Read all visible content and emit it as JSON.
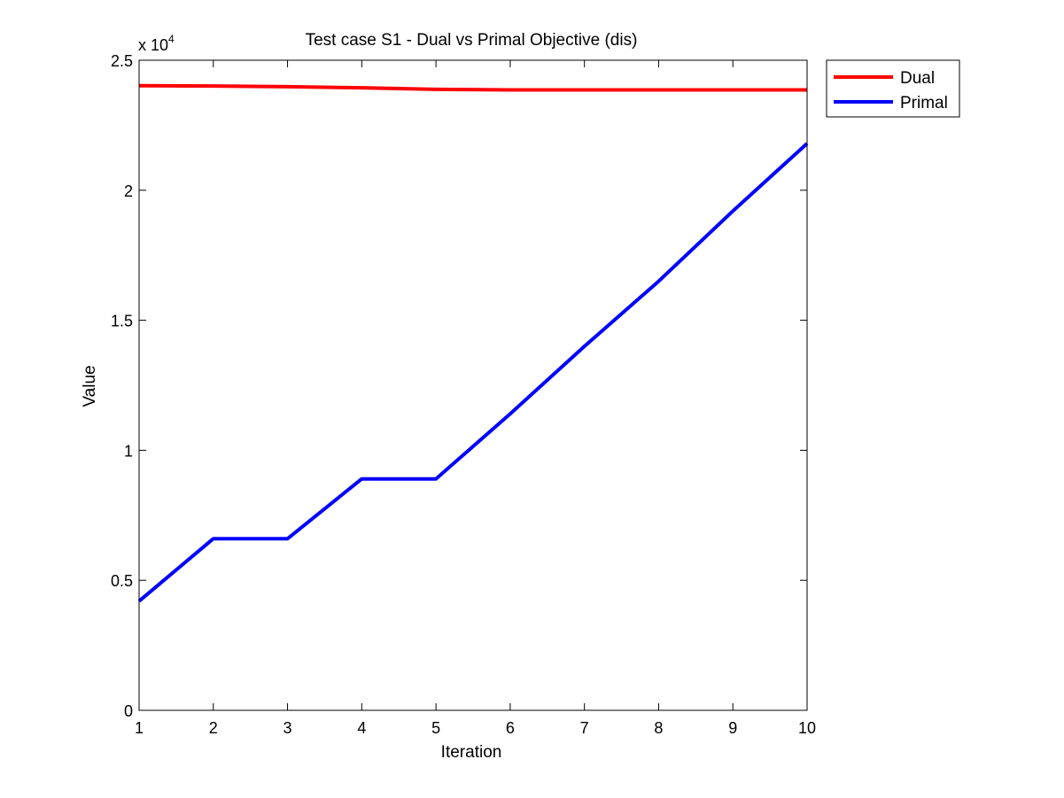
{
  "chart_data": {
    "type": "line",
    "title": "Test case S1 - Dual vs Primal Objective (dis)",
    "xlabel": "Iteration",
    "ylabel": "Value",
    "y_scale_multiplier": {
      "base": "x 10",
      "exponent": "4"
    },
    "xlim": [
      1,
      10
    ],
    "ylim": [
      0,
      25000
    ],
    "x_ticks": [
      1,
      2,
      3,
      4,
      5,
      6,
      7,
      8,
      9,
      10
    ],
    "x_tick_labels": [
      "1",
      "2",
      "3",
      "4",
      "5",
      "6",
      "7",
      "8",
      "9",
      "10"
    ],
    "y_ticks": [
      0,
      5000,
      10000,
      15000,
      20000,
      25000
    ],
    "y_tick_labels": [
      "0",
      "0.5",
      "1",
      "1.5",
      "2",
      "2.5"
    ],
    "grid": false,
    "legend_position": "outside top-right",
    "series": [
      {
        "name": "Dual",
        "color": "#ff0000",
        "x": [
          1,
          2,
          3,
          4,
          5,
          6,
          7,
          8,
          9,
          10
        ],
        "values": [
          24020,
          24010,
          23980,
          23940,
          23880,
          23860,
          23860,
          23860,
          23860,
          23860
        ]
      },
      {
        "name": "Primal",
        "color": "#0000ff",
        "x": [
          1,
          2,
          3,
          4,
          5,
          6,
          7,
          8,
          9,
          10
        ],
        "values": [
          4200,
          6600,
          6600,
          8900,
          8900,
          11400,
          14000,
          16500,
          19200,
          21800
        ]
      }
    ]
  }
}
